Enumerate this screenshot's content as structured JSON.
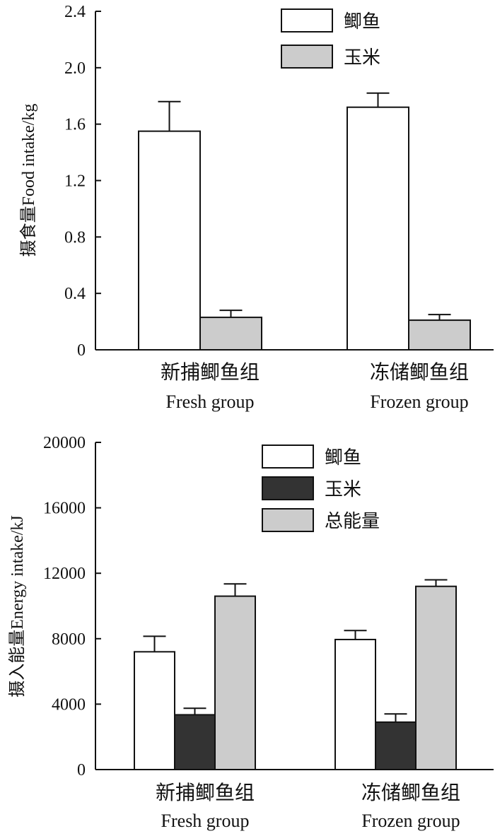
{
  "chart_data": [
    {
      "type": "bar",
      "ylabel": "摄食量Food intake/kg",
      "ylim": [
        0,
        2.4
      ],
      "yticks": [
        "0",
        "0.4",
        "0.8",
        "1.2",
        "1.6",
        "2.0",
        "2.4"
      ],
      "ytick_values": [
        0,
        0.4,
        0.8,
        1.2,
        1.6,
        2.0,
        2.4
      ],
      "categories": [
        {
          "cn": "新捕鲫鱼组",
          "en": "Fresh group"
        },
        {
          "cn": "冻储鲫鱼组",
          "en": "Frozen group"
        }
      ],
      "series": [
        {
          "name": "鲫鱼",
          "color": "#ffffff",
          "values": [
            1.55,
            1.72
          ],
          "errors": [
            0.21,
            0.1
          ]
        },
        {
          "name": "玉米",
          "color": "#cccccc",
          "values": [
            0.23,
            0.21
          ],
          "errors": [
            0.05,
            0.04
          ]
        }
      ],
      "legend": "top-right",
      "grid": false
    },
    {
      "type": "bar",
      "ylabel": "摄入能量Energy intake/kJ",
      "ylim": [
        0,
        20000
      ],
      "yticks": [
        "0",
        "4000",
        "8000",
        "12000",
        "16000",
        "20000"
      ],
      "ytick_values": [
        0,
        4000,
        8000,
        12000,
        16000,
        20000
      ],
      "categories": [
        {
          "cn": "新捕鲫鱼组",
          "en": "Fresh group"
        },
        {
          "cn": "冻储鲫鱼组",
          "en": "Frozen group"
        }
      ],
      "series": [
        {
          "name": "鲫鱼",
          "color": "#ffffff",
          "values": [
            7200,
            7950
          ],
          "errors": [
            950,
            550
          ]
        },
        {
          "name": "玉米",
          "color": "#333333",
          "values": [
            3350,
            2900
          ],
          "errors": [
            400,
            500
          ]
        },
        {
          "name": "总能量",
          "color": "#cccccc",
          "values": [
            10600,
            11200
          ],
          "errors": [
            750,
            400
          ]
        }
      ],
      "legend": "top-right",
      "grid": false
    }
  ]
}
